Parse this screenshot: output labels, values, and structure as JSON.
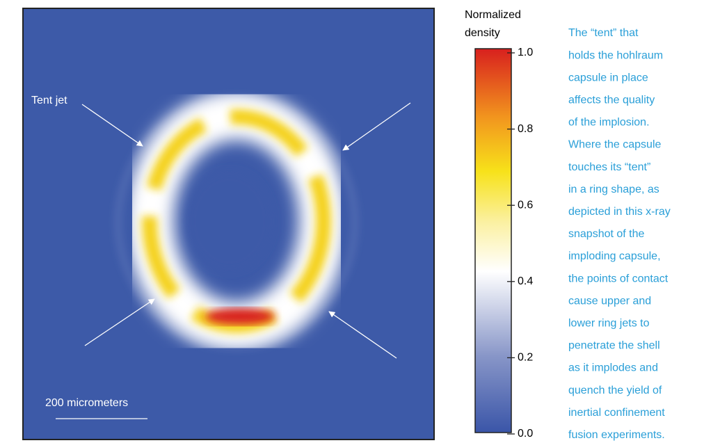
{
  "image": {
    "annotations": {
      "tent_jet": "Tent jet",
      "scale_bar": "200 micrometers"
    }
  },
  "colorbar": {
    "title": [
      "Normalized",
      "density"
    ],
    "lim": [
      0,
      1
    ],
    "ticks": [
      {
        "value": 0,
        "label": "0.0"
      },
      {
        "value": 0.2,
        "label": "0.2"
      },
      {
        "value": 0.4,
        "label": "0.4"
      },
      {
        "value": 0.6,
        "label": "0.6"
      },
      {
        "value": 0.8,
        "label": "0.8"
      },
      {
        "value": 1,
        "label": "1.0"
      }
    ]
  },
  "caption": [
    "The “tent” that",
    "holds the hohlraum",
    "capsule in place",
    "affects the quality",
    "of the implosion.",
    "Where the capsule",
    "touches its “tent”",
    "in a ring shape, as",
    "depicted in this x-ray",
    "snapshot of the",
    "imploding capsule,",
    "the points of contact",
    "cause upper and",
    "lower ring jets to",
    "penetrate the shell",
    "as it implodes and",
    "quench the yield of",
    "inertial confinement",
    "fusion experiments."
  ]
}
